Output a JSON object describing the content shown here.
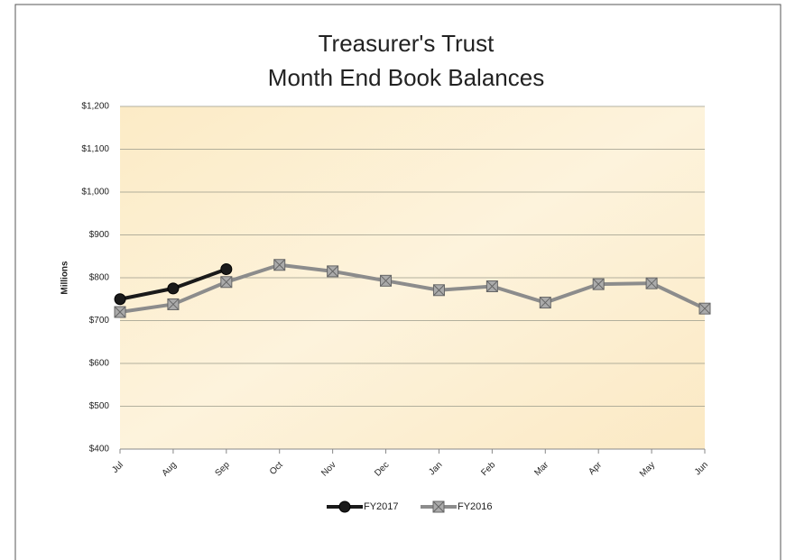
{
  "chart_data": {
    "type": "line",
    "title": [
      "Treasurer's Trust",
      "Month End Book Balances"
    ],
    "y_label": "Millions",
    "categories": [
      "Jul",
      "Aug",
      "Sep",
      "Oct",
      "Nov",
      "Dec",
      "Jan",
      "Feb",
      "Mar",
      "Apr",
      "May",
      "Jun"
    ],
    "series": [
      {
        "name": "FY2017",
        "color": "#1a1a1a",
        "marker": "circle",
        "values": [
          750,
          775,
          820,
          null,
          null,
          null,
          null,
          null,
          null,
          null,
          null,
          null
        ]
      },
      {
        "name": "FY2016",
        "color": "#8c8c8c",
        "marker": "square",
        "values": [
          720,
          738,
          790,
          830,
          815,
          793,
          771,
          780,
          742,
          785,
          787,
          728
        ]
      }
    ],
    "ylim": [
      400,
      1200
    ],
    "yticks": [
      {
        "value": 400,
        "label": "$400"
      },
      {
        "value": 500,
        "label": "$500"
      },
      {
        "value": 600,
        "label": "$600"
      },
      {
        "value": 700,
        "label": "$700"
      },
      {
        "value": 800,
        "label": "$800"
      },
      {
        "value": 900,
        "label": "$900"
      },
      {
        "value": 1000,
        "label": "$1,000"
      },
      {
        "value": 1100,
        "label": "$1,100"
      },
      {
        "value": 1200,
        "label": "$1,200"
      }
    ],
    "grid": true,
    "legend": "bottom"
  }
}
